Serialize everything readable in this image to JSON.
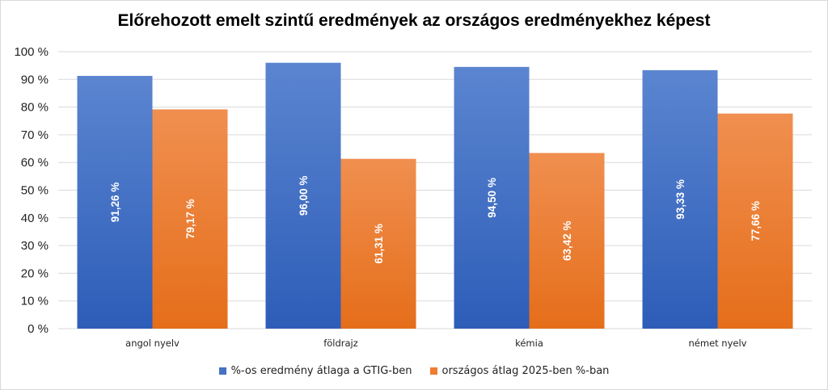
{
  "chart_data": {
    "type": "bar",
    "title": "Előrehozott emelt szintű eredmények az országos eredményekhez képest",
    "categories": [
      "angol nyelv",
      "földrajz",
      "kémia",
      "német nyelv"
    ],
    "series": [
      {
        "name": "%-os eredmény átlaga a GTIG-ben",
        "values": [
          91.26,
          96.0,
          94.5,
          93.33
        ],
        "labels": [
          "91,26 %",
          "96,00 %",
          "94,50 %",
          "93,33 %"
        ],
        "color": "#4472c4"
      },
      {
        "name": "országos átlag 2025-ben %-ban",
        "values": [
          79.17,
          61.31,
          63.42,
          77.66
        ],
        "labels": [
          "79,17 %",
          "61,31 %",
          "63,42 %",
          "77,66 %"
        ],
        "color": "#ed7d31"
      }
    ],
    "ylim": [
      0,
      100
    ],
    "yticks": [
      0,
      10,
      20,
      30,
      40,
      50,
      60,
      70,
      80,
      90,
      100
    ],
    "ytick_labels": [
      "0 %",
      "10 %",
      "20 %",
      "30 %",
      "40 %",
      "50 %",
      "60 %",
      "70 %",
      "80 %",
      "90 %",
      "100 %"
    ],
    "grid": true,
    "legend": "bottom"
  }
}
